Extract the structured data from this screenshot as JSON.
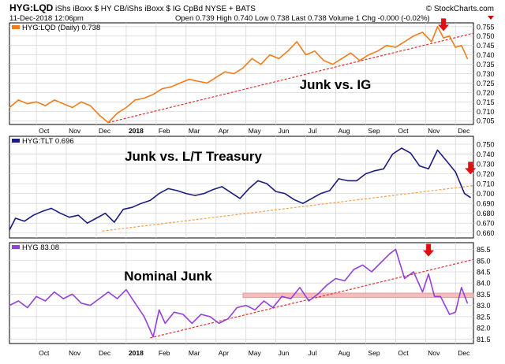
{
  "header": {
    "symbol": "HYG:LQD",
    "description": "iShs iBoxx $ HY CB/iShs iBoxx $ IG CpBd  NYSE + BATS",
    "date": "11-Dec-2018 12:06pm",
    "watermark": "© StockCharts.com",
    "quote": "Open 0.739  High 0.740  Low 0.738  Last 0.738  Volume 1  Chg -0.000 (-0.02%)",
    "quote_arrow_color": "#cc0000"
  },
  "colors": {
    "panel1_line": "#f07c1a",
    "panel2_line": "#1b1b80",
    "panel3_line": "#9440d8",
    "trend_red": "#e0302a",
    "trend_orange": "#f5a046",
    "band_fill": "#f6b6b8",
    "band_edge": "#d9858a",
    "arrow": "#e01010",
    "grid": "#d7d7d7"
  },
  "chart_data": [
    {
      "type": "line",
      "legend": "HYG:LQD (Daily) 0.738",
      "annotation": "Junk vs. IG",
      "ylim": [
        0.703,
        0.757
      ],
      "yticks": [
        0.705,
        0.71,
        0.715,
        0.72,
        0.725,
        0.73,
        0.735,
        0.74,
        0.745,
        0.75,
        0.755
      ],
      "ytick_labels": [
        "0.705",
        "0.710",
        "0.715",
        "0.720",
        "0.725",
        "0.730",
        "0.735",
        "0.740",
        "0.745",
        "0.750",
        "0.755"
      ],
      "x_labels": [
        "Oct",
        "Nov",
        "Dec",
        "2018",
        "Feb",
        "Mar",
        "Apr",
        "May",
        "Jun",
        "Jul",
        "Aug",
        "Sep",
        "Oct",
        "Nov",
        "Dec"
      ],
      "x_label_bold": [
        "2018"
      ],
      "x_month_positions": [
        0.0,
        1.0,
        2.0,
        3.0,
        4.0,
        5.0,
        6.0,
        7.0,
        8.0,
        9.0,
        10.0,
        11.0,
        12.0,
        13.0,
        14.0
      ],
      "x_range": [
        -0.9,
        14.6
      ],
      "series": [
        {
          "x": [
            -0.9,
            -0.6,
            -0.3,
            0,
            0.3,
            0.6,
            0.9,
            1.2,
            1.5,
            1.8,
            2.1,
            2.4,
            2.7,
            3.0,
            3.3,
            3.6,
            3.9,
            4.2,
            4.5,
            4.8,
            5.1,
            5.4,
            5.7,
            6.0,
            6.3,
            6.6,
            6.9,
            7.2,
            7.5,
            7.8,
            8.1,
            8.4,
            8.7,
            9.0,
            9.3,
            9.6,
            9.9,
            10.2,
            10.5,
            10.8,
            11.1,
            11.4,
            11.7,
            12.0,
            12.3,
            12.6,
            12.9,
            13.2,
            13.4,
            13.6,
            13.8,
            14.0,
            14.2,
            14.4
          ],
          "y": [
            0.712,
            0.716,
            0.714,
            0.715,
            0.713,
            0.716,
            0.714,
            0.712,
            0.715,
            0.713,
            0.708,
            0.704,
            0.709,
            0.712,
            0.716,
            0.717,
            0.719,
            0.722,
            0.723,
            0.725,
            0.727,
            0.726,
            0.725,
            0.728,
            0.731,
            0.73,
            0.733,
            0.738,
            0.735,
            0.74,
            0.738,
            0.742,
            0.747,
            0.74,
            0.742,
            0.737,
            0.735,
            0.738,
            0.741,
            0.737,
            0.74,
            0.742,
            0.745,
            0.744,
            0.747,
            0.75,
            0.752,
            0.747,
            0.755,
            0.749,
            0.75,
            0.744,
            0.745,
            0.738
          ]
        }
      ],
      "trendline": {
        "x": [
          2.4,
          14.6
        ],
        "y": [
          0.704,
          0.7515
        ],
        "style": "dashed",
        "color": "#e0302a"
      },
      "arrows": [
        {
          "x": 13.6,
          "y": 0.7535
        }
      ]
    },
    {
      "type": "line",
      "legend": "HYG:TLT 0.696",
      "annotation": "Junk vs. L/T Treasury",
      "ylim": [
        0.655,
        0.758
      ],
      "yticks": [
        0.66,
        0.67,
        0.68,
        0.69,
        0.7,
        0.71,
        0.72,
        0.73,
        0.74,
        0.75
      ],
      "ytick_labels": [
        "0.660",
        "0.670",
        "0.680",
        "0.690",
        "0.700",
        "0.710",
        "0.720",
        "0.730",
        "0.740",
        "0.750"
      ],
      "x_labels": [],
      "x_range": [
        -0.9,
        14.6
      ],
      "series": [
        {
          "x": [
            -0.9,
            -0.7,
            -0.4,
            -0.1,
            0.2,
            0.5,
            0.8,
            1.1,
            1.4,
            1.7,
            2.0,
            2.3,
            2.6,
            2.9,
            3.2,
            3.5,
            3.8,
            4.1,
            4.4,
            4.7,
            5.0,
            5.3,
            5.6,
            5.9,
            6.2,
            6.5,
            6.8,
            7.1,
            7.4,
            7.7,
            8.0,
            8.3,
            8.6,
            8.9,
            9.2,
            9.5,
            9.8,
            10.1,
            10.4,
            10.7,
            11.0,
            11.3,
            11.6,
            11.9,
            12.2,
            12.5,
            12.8,
            13.1,
            13.4,
            13.7,
            14.0,
            14.3,
            14.5
          ],
          "y": [
            0.663,
            0.675,
            0.672,
            0.678,
            0.682,
            0.685,
            0.68,
            0.676,
            0.678,
            0.67,
            0.675,
            0.68,
            0.671,
            0.684,
            0.686,
            0.69,
            0.693,
            0.7,
            0.705,
            0.703,
            0.7,
            0.698,
            0.7,
            0.704,
            0.707,
            0.701,
            0.695,
            0.705,
            0.713,
            0.71,
            0.702,
            0.7,
            0.694,
            0.69,
            0.695,
            0.7,
            0.703,
            0.715,
            0.713,
            0.713,
            0.72,
            0.723,
            0.725,
            0.74,
            0.746,
            0.741,
            0.728,
            0.725,
            0.744,
            0.733,
            0.722,
            0.7,
            0.696
          ]
        }
      ],
      "trendline": {
        "x": [
          2.2,
          14.6
        ],
        "y": [
          0.662,
          0.708
        ],
        "style": "dashed",
        "color": "#f5a046"
      },
      "arrows": [
        {
          "x": 14.5,
          "y": 0.721
        }
      ]
    },
    {
      "type": "line",
      "legend": "HYG 83.08",
      "annotation": "Nominal Junk",
      "ylim": [
        81.3,
        85.8
      ],
      "yticks": [
        81.5,
        82.0,
        82.5,
        83.0,
        83.5,
        84.0,
        84.5,
        85.0,
        85.5
      ],
      "ytick_labels": [
        "81.5",
        "82.0",
        "82.5",
        "83.0",
        "83.5",
        "84.0",
        "84.5",
        "85.0",
        "85.5"
      ],
      "x_labels": [
        "Oct",
        "Nov",
        "Dec",
        "2018",
        "Feb",
        "Mar",
        "Apr",
        "May",
        "Jun",
        "Jul",
        "Aug",
        "Sep",
        "Oct",
        "Nov",
        "Dec"
      ],
      "x_label_bold": [
        "2018"
      ],
      "x_month_positions": [
        0.0,
        1.0,
        2.0,
        3.0,
        4.0,
        5.0,
        6.0,
        7.0,
        8.0,
        9.0,
        10.0,
        11.0,
        12.0,
        13.0,
        14.0
      ],
      "x_range": [
        -0.9,
        14.6
      ],
      "series": [
        {
          "x": [
            -0.9,
            -0.6,
            -0.3,
            0,
            0.3,
            0.6,
            0.9,
            1.2,
            1.5,
            1.8,
            2.1,
            2.4,
            2.7,
            3.0,
            3.3,
            3.6,
            3.9,
            4.1,
            4.3,
            4.6,
            4.9,
            5.2,
            5.5,
            5.8,
            6.1,
            6.4,
            6.7,
            7.0,
            7.3,
            7.6,
            7.9,
            8.2,
            8.5,
            8.8,
            9.1,
            9.4,
            9.7,
            10.0,
            10.3,
            10.6,
            10.9,
            11.2,
            11.5,
            11.8,
            12.0,
            12.3,
            12.6,
            12.9,
            13.1,
            13.3,
            13.5,
            13.8,
            14.0,
            14.2,
            14.4
          ],
          "y": [
            83.0,
            83.2,
            82.9,
            83.4,
            83.2,
            83.6,
            83.3,
            83.5,
            83.1,
            83.0,
            83.3,
            83.6,
            83.3,
            83.7,
            83.1,
            82.5,
            81.6,
            82.8,
            82.2,
            82.7,
            82.6,
            82.2,
            82.6,
            82.5,
            82.2,
            82.4,
            82.9,
            83.0,
            82.8,
            83.2,
            82.9,
            83.4,
            83.3,
            83.8,
            83.2,
            83.5,
            83.9,
            84.2,
            84.1,
            84.6,
            84.8,
            84.5,
            84.9,
            85.3,
            85.5,
            84.2,
            84.5,
            83.6,
            84.4,
            83.4,
            83.4,
            82.6,
            82.7,
            83.8,
            83.1
          ]
        }
      ],
      "trendline": {
        "x": [
          3.8,
          14.6
        ],
        "y": [
          81.55,
          85.05
        ],
        "style": "dashed",
        "color": "#e0302a"
      },
      "band": {
        "y": [
          83.35,
          83.55
        ],
        "x": [
          6.9,
          14.6
        ]
      },
      "arrows": [
        {
          "x": 13.1,
          "y": 85.25
        }
      ]
    }
  ]
}
